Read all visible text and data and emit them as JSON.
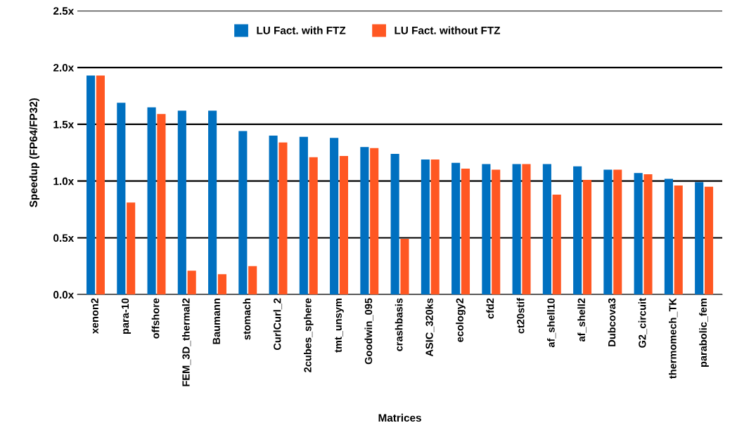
{
  "chart_data": {
    "type": "bar",
    "xlabel": "Matrices",
    "ylabel": "Speedup (FP64/FP32)",
    "categories": [
      "xenon2",
      "para-10",
      "offshore",
      "FEM_3D_thermal2",
      "Baumann",
      "stomach",
      "CurlCurl_2",
      "2cubes_sphere",
      "tmt_unsym",
      "Goodwin_095",
      "crashbasis",
      "ASIC_320ks",
      "ecology2",
      "cfd2",
      "ct20stif",
      "af_shell10",
      "af_shell2",
      "Dubcova3",
      "G2_circuit",
      "thermomech_TK",
      "parabolic_fem"
    ],
    "series": [
      {
        "name": "LU Fact. with FTZ",
        "color": "#0070c0",
        "values": [
          1.93,
          1.69,
          1.65,
          1.62,
          1.62,
          1.44,
          1.4,
          1.39,
          1.38,
          1.3,
          1.24,
          1.19,
          1.16,
          1.15,
          1.15,
          1.15,
          1.13,
          1.1,
          1.07,
          1.02,
          0.99
        ]
      },
      {
        "name": "LU Fact. without FTZ",
        "color": "#ff5722",
        "values": [
          1.93,
          0.81,
          1.59,
          0.21,
          0.18,
          0.25,
          1.34,
          1.21,
          1.22,
          1.29,
          0.49,
          1.19,
          1.11,
          1.1,
          1.15,
          0.88,
          1.01,
          1.1,
          1.06,
          0.96,
          0.95
        ]
      }
    ],
    "ylim": [
      0,
      2.5
    ],
    "yticks": [
      {
        "value": 0,
        "label": "0.0x"
      },
      {
        "value": 0.5,
        "label": "0.5x"
      },
      {
        "value": 1.0,
        "label": "1.0x"
      },
      {
        "value": 1.5,
        "label": "1.5x"
      },
      {
        "value": 2.0,
        "label": "2.0x"
      },
      {
        "value": 2.5,
        "label": "2.5x"
      }
    ],
    "grid": "y",
    "legend": "top"
  }
}
